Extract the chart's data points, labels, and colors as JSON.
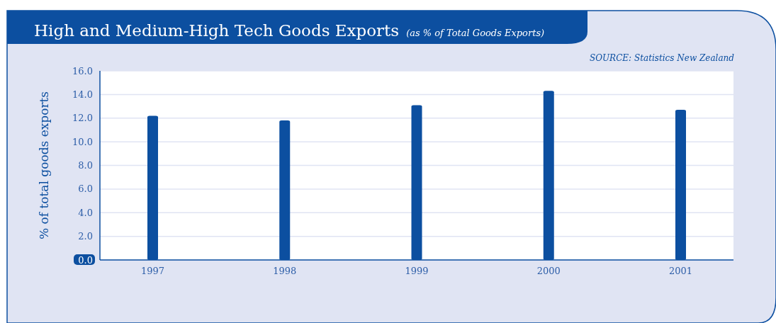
{
  "chart_data": {
    "type": "bar",
    "title": "High and Medium-High Tech Goods Exports",
    "subtitle": "(as % of Total Goods Exports)",
    "ylabel": "% of total goods exports",
    "annotations": [
      "SOURCE: Statistics New Zealand"
    ],
    "categories": [
      "1997",
      "1998",
      "1999",
      "2000",
      "2001"
    ],
    "values": [
      12.2,
      11.8,
      13.1,
      14.3,
      12.7
    ],
    "color": "#0c4fa0",
    "ylim": [
      0,
      16
    ],
    "yticks": [
      {
        "value": 0,
        "label": "0.0"
      },
      {
        "value": 2,
        "label": "2.0"
      },
      {
        "value": 4,
        "label": "4.0"
      },
      {
        "value": 6,
        "label": "6.0"
      },
      {
        "value": 8,
        "label": "8.0"
      },
      {
        "value": 10,
        "label": "10.0"
      },
      {
        "value": 12,
        "label": "12.0"
      },
      {
        "value": 14,
        "label": "14.0"
      },
      {
        "value": 16,
        "label": "16.0"
      }
    ],
    "grid": "y"
  }
}
